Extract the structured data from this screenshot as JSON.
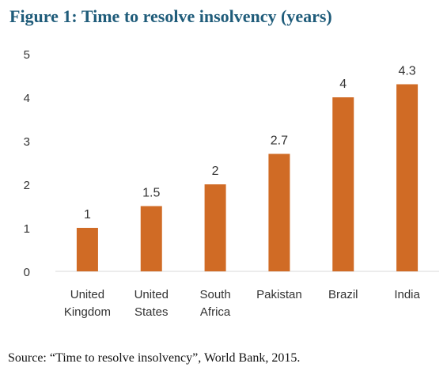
{
  "title": "Figure 1: Time to resolve insolvency (years)",
  "source": "Source: “Time to resolve insolvency”, World Bank, 2015.",
  "chart_data": {
    "type": "bar",
    "categories": [
      [
        "United",
        "Kingdom"
      ],
      [
        "United",
        "States"
      ],
      [
        "South",
        "Africa"
      ],
      [
        "Pakistan"
      ],
      [
        "Brazil"
      ],
      [
        "India"
      ]
    ],
    "values": [
      1,
      1.5,
      2,
      2.7,
      4,
      4.3
    ],
    "data_labels": [
      "1",
      "1.5",
      "2",
      "2.7",
      "4",
      "4.3"
    ],
    "yticks": [
      "0",
      "1",
      "2",
      "3",
      "4",
      "5"
    ],
    "ylim": [
      0,
      5
    ],
    "grid": false,
    "legend": "none",
    "bar_color": "#d06b25",
    "title_color": "#1f5c7a"
  }
}
